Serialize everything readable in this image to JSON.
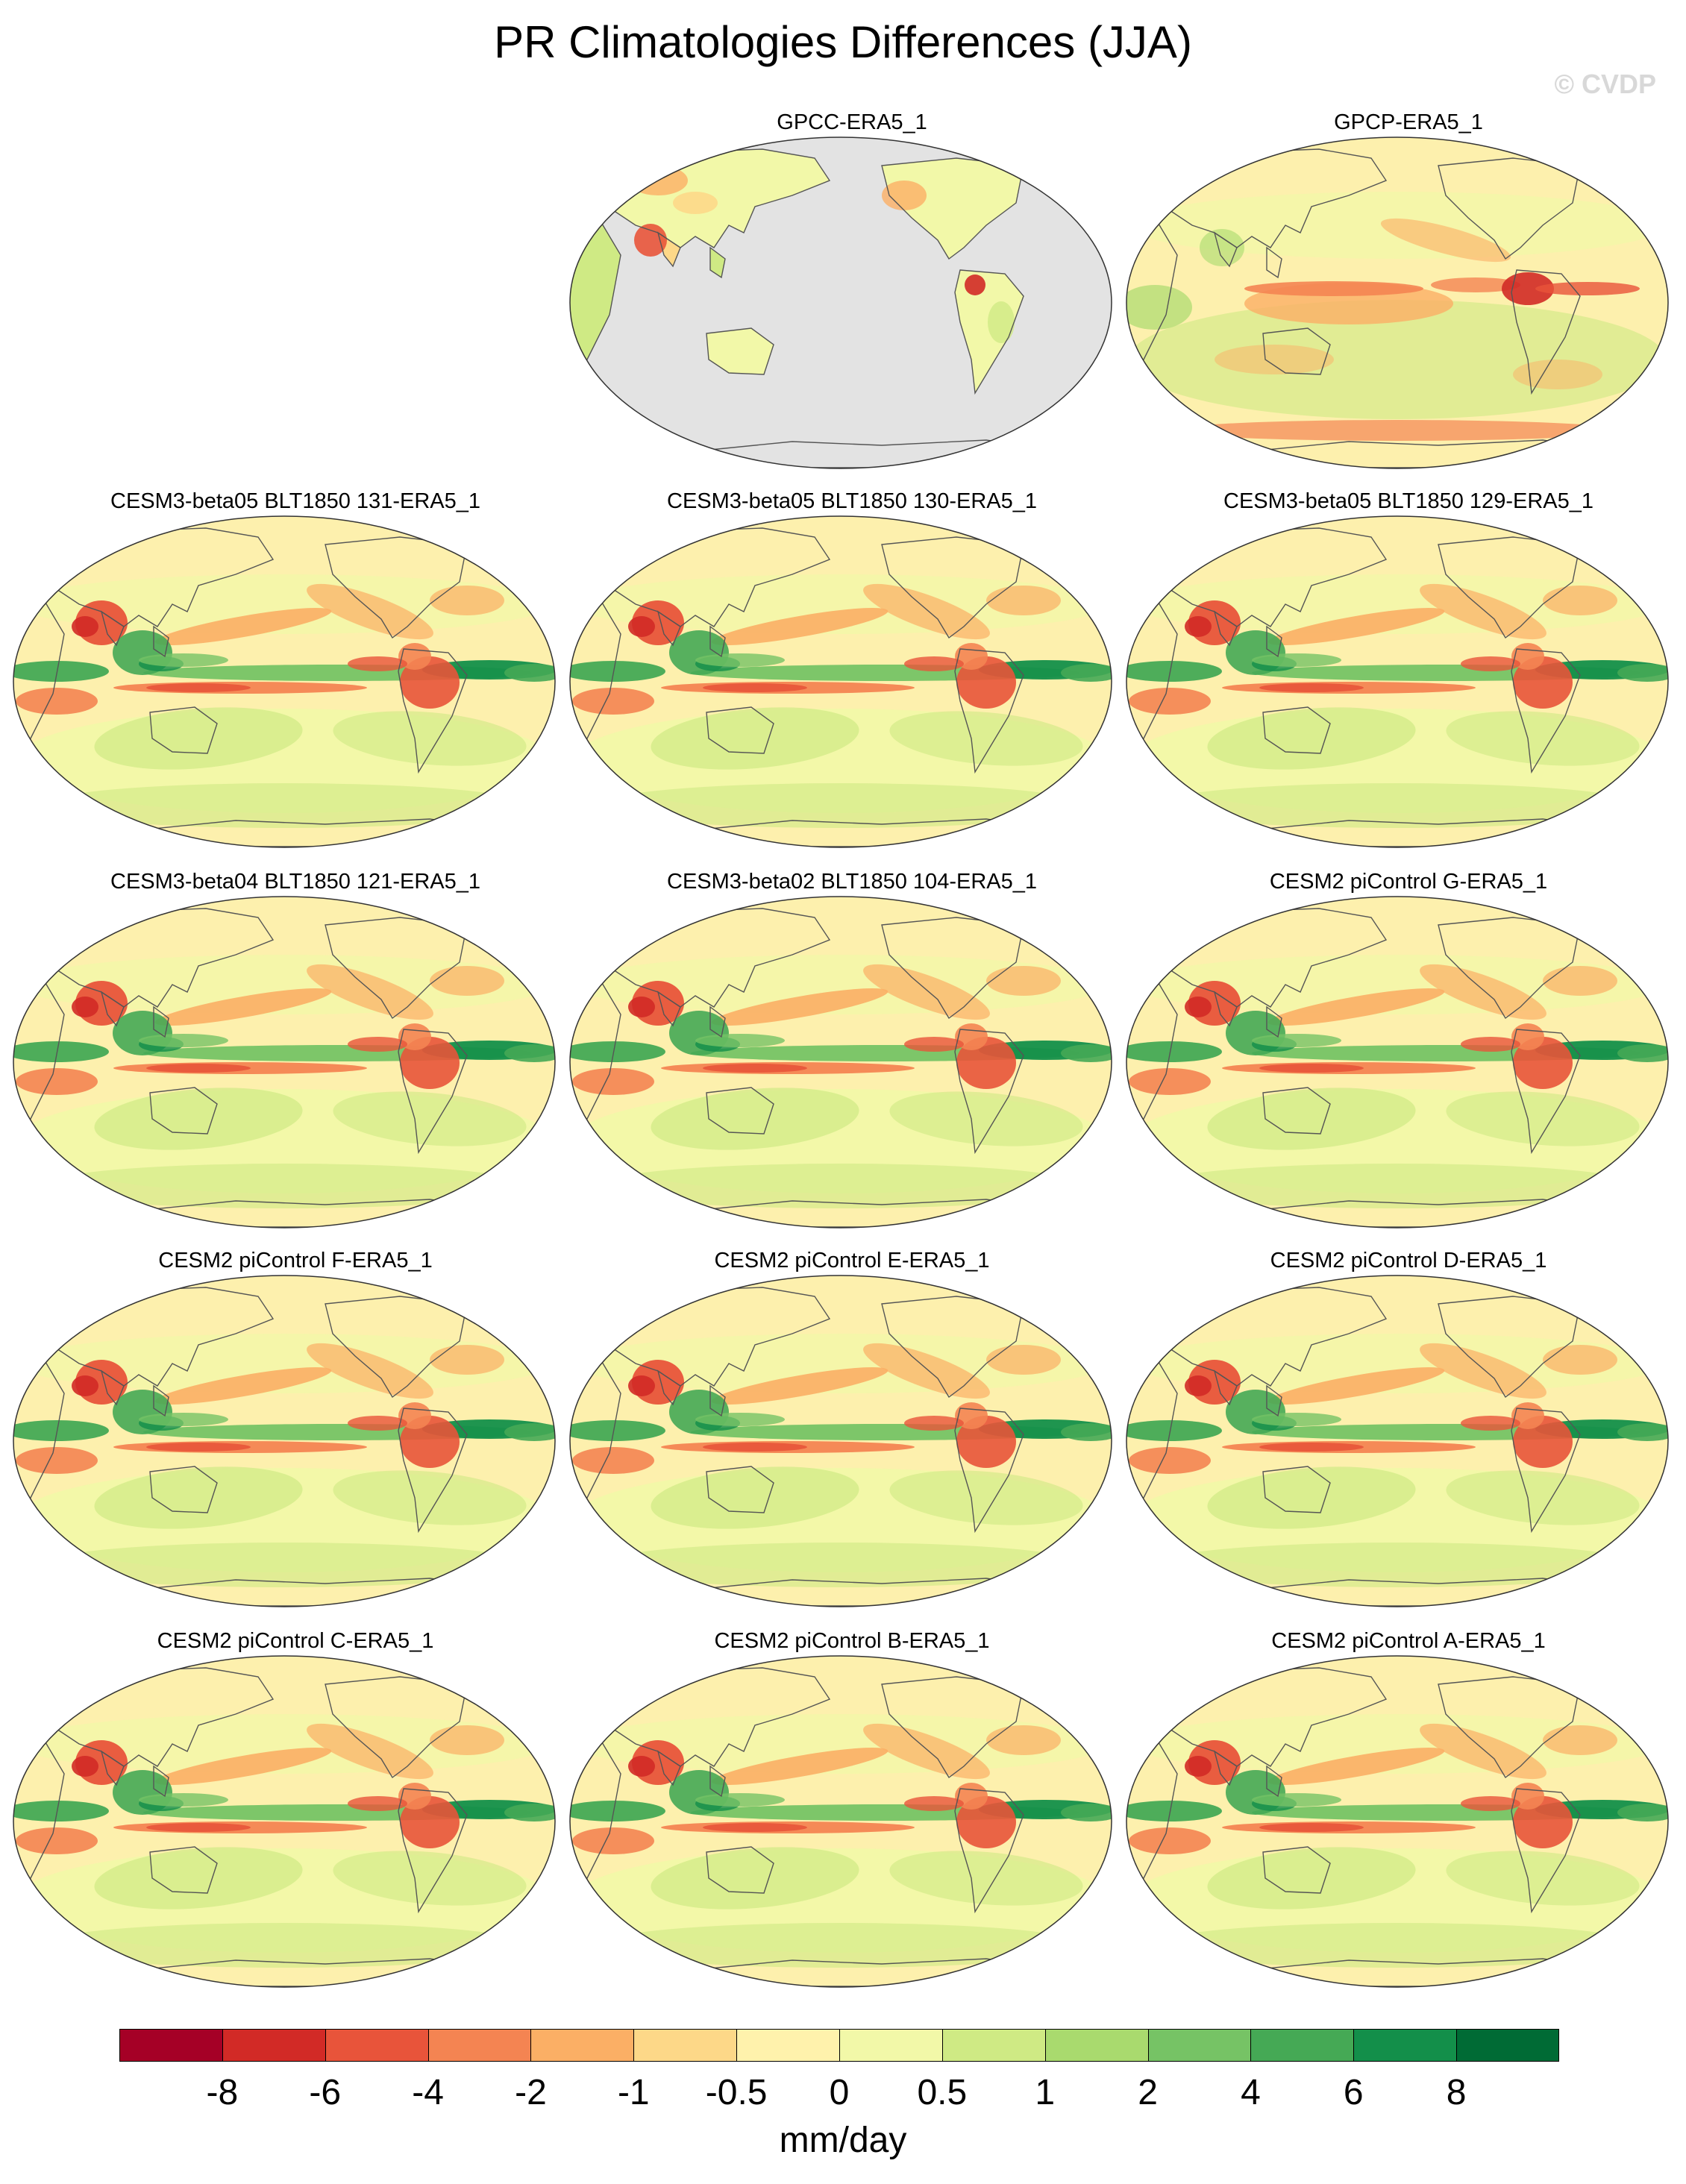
{
  "title": "PR Climatologies Differences (JJA)",
  "watermark": "© CVDP",
  "panels": [
    {
      "label": "GPCC-ERA5_1",
      "type": "land"
    },
    {
      "label": "GPCP-ERA5_1",
      "type": "obs"
    },
    {
      "label": "CESM3-beta05 BLT1850 131-ERA5_1",
      "type": "model"
    },
    {
      "label": "CESM3-beta05 BLT1850 130-ERA5_1",
      "type": "model"
    },
    {
      "label": "CESM3-beta05 BLT1850 129-ERA5_1",
      "type": "model"
    },
    {
      "label": "CESM3-beta04 BLT1850 121-ERA5_1",
      "type": "model"
    },
    {
      "label": "CESM3-beta02 BLT1850 104-ERA5_1",
      "type": "model"
    },
    {
      "label": "CESM2 piControl G-ERA5_1",
      "type": "model"
    },
    {
      "label": "CESM2 piControl F-ERA5_1",
      "type": "model"
    },
    {
      "label": "CESM2 piControl E-ERA5_1",
      "type": "model"
    },
    {
      "label": "CESM2 piControl D-ERA5_1",
      "type": "model"
    },
    {
      "label": "CESM2 piControl C-ERA5_1",
      "type": "model"
    },
    {
      "label": "CESM2 piControl B-ERA5_1",
      "type": "model"
    },
    {
      "label": "CESM2 piControl A-ERA5_1",
      "type": "model"
    }
  ],
  "colorbar": {
    "colors": [
      "#a50026",
      "#d22a26",
      "#e8543a",
      "#f48452",
      "#fbaf65",
      "#fdd888",
      "#fff2ac",
      "#f2f8a8",
      "#cfea84",
      "#a9da6e",
      "#76c365",
      "#45a955",
      "#138f4a",
      "#006b35"
    ],
    "labels": [
      "-8",
      "-6",
      "-4",
      "-2",
      "-1",
      "-0.5",
      "0",
      "0.5",
      "1",
      "2",
      "4",
      "6",
      "8"
    ],
    "units": "mm/day"
  },
  "map_colors": {
    "ocean_base": "#fdf0ad",
    "land_missing": "#e3e3e3",
    "coast": "#555555"
  }
}
